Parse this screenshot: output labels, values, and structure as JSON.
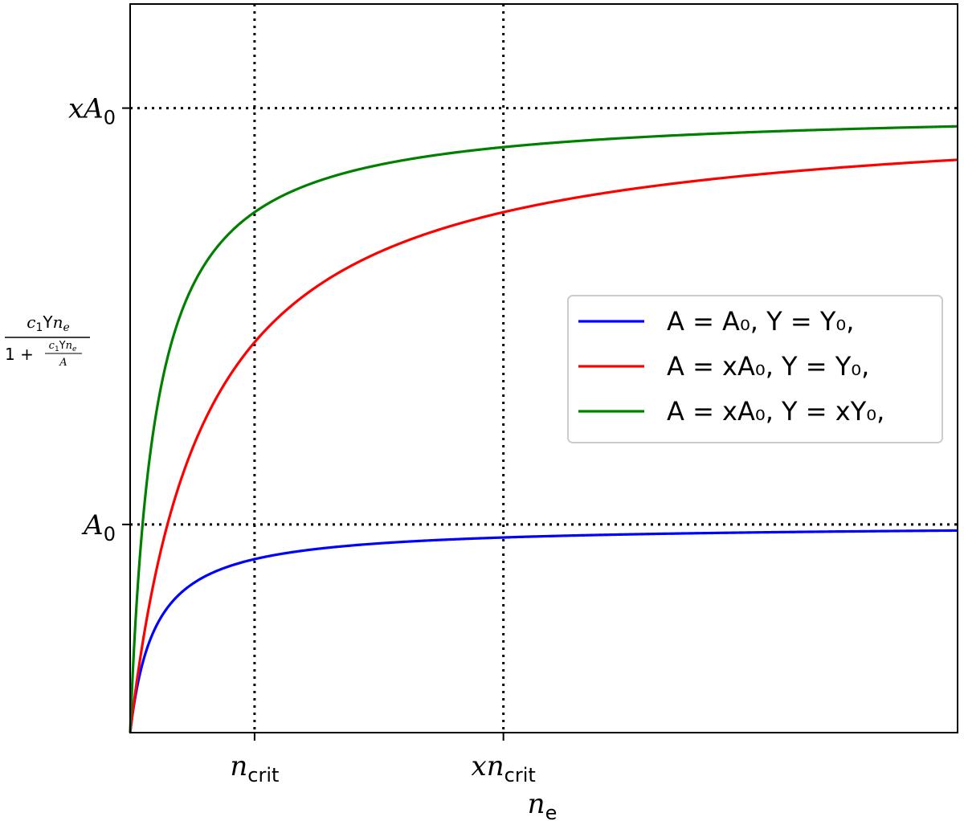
{
  "chart_data": {
    "type": "line",
    "title": "",
    "xlabel": "n_e",
    "ylabel": "c1 Υ n_e / (1 + c1 Υ n_e / A)",
    "xlim": [
      0,
      6.65
    ],
    "ylim": [
      0,
      3.5
    ],
    "x_ticks": [
      {
        "value": 1.0,
        "label": "n",
        "sub": "crit",
        "prefix": ""
      },
      {
        "value": 3.0,
        "label": "n",
        "sub": "crit",
        "prefix": "x"
      }
    ],
    "y_ticks": [
      {
        "value": 1.0,
        "label": "A",
        "sub": "0",
        "prefix": ""
      },
      {
        "value": 3.0,
        "label": "A",
        "sub": "0",
        "prefix": "x"
      }
    ],
    "reference_lines": {
      "horizontal": [
        1.0,
        3.0
      ],
      "vertical": [
        1.0,
        3.0
      ],
      "style": "dotted"
    },
    "series": [
      {
        "name": "A = A₀, Υ = Υ₀,",
        "color": "#0000ff",
        "A": 1.0,
        "c": 5.0
      },
      {
        "name": "A = xA₀, Υ = Υ₀,",
        "color": "#ff0000",
        "A": 3.0,
        "c": 5.0
      },
      {
        "name": "A = xA₀, Υ = xΥ₀,",
        "color": "#008000",
        "A": 3.0,
        "c": 15.0
      }
    ],
    "legend": {
      "position": "right",
      "entries": [
        "A = A₀, Υ = Υ₀,",
        "A = xA₀, Υ = Υ₀,",
        "A = xA₀, Υ = xΥ₀,"
      ]
    },
    "grid": false
  }
}
